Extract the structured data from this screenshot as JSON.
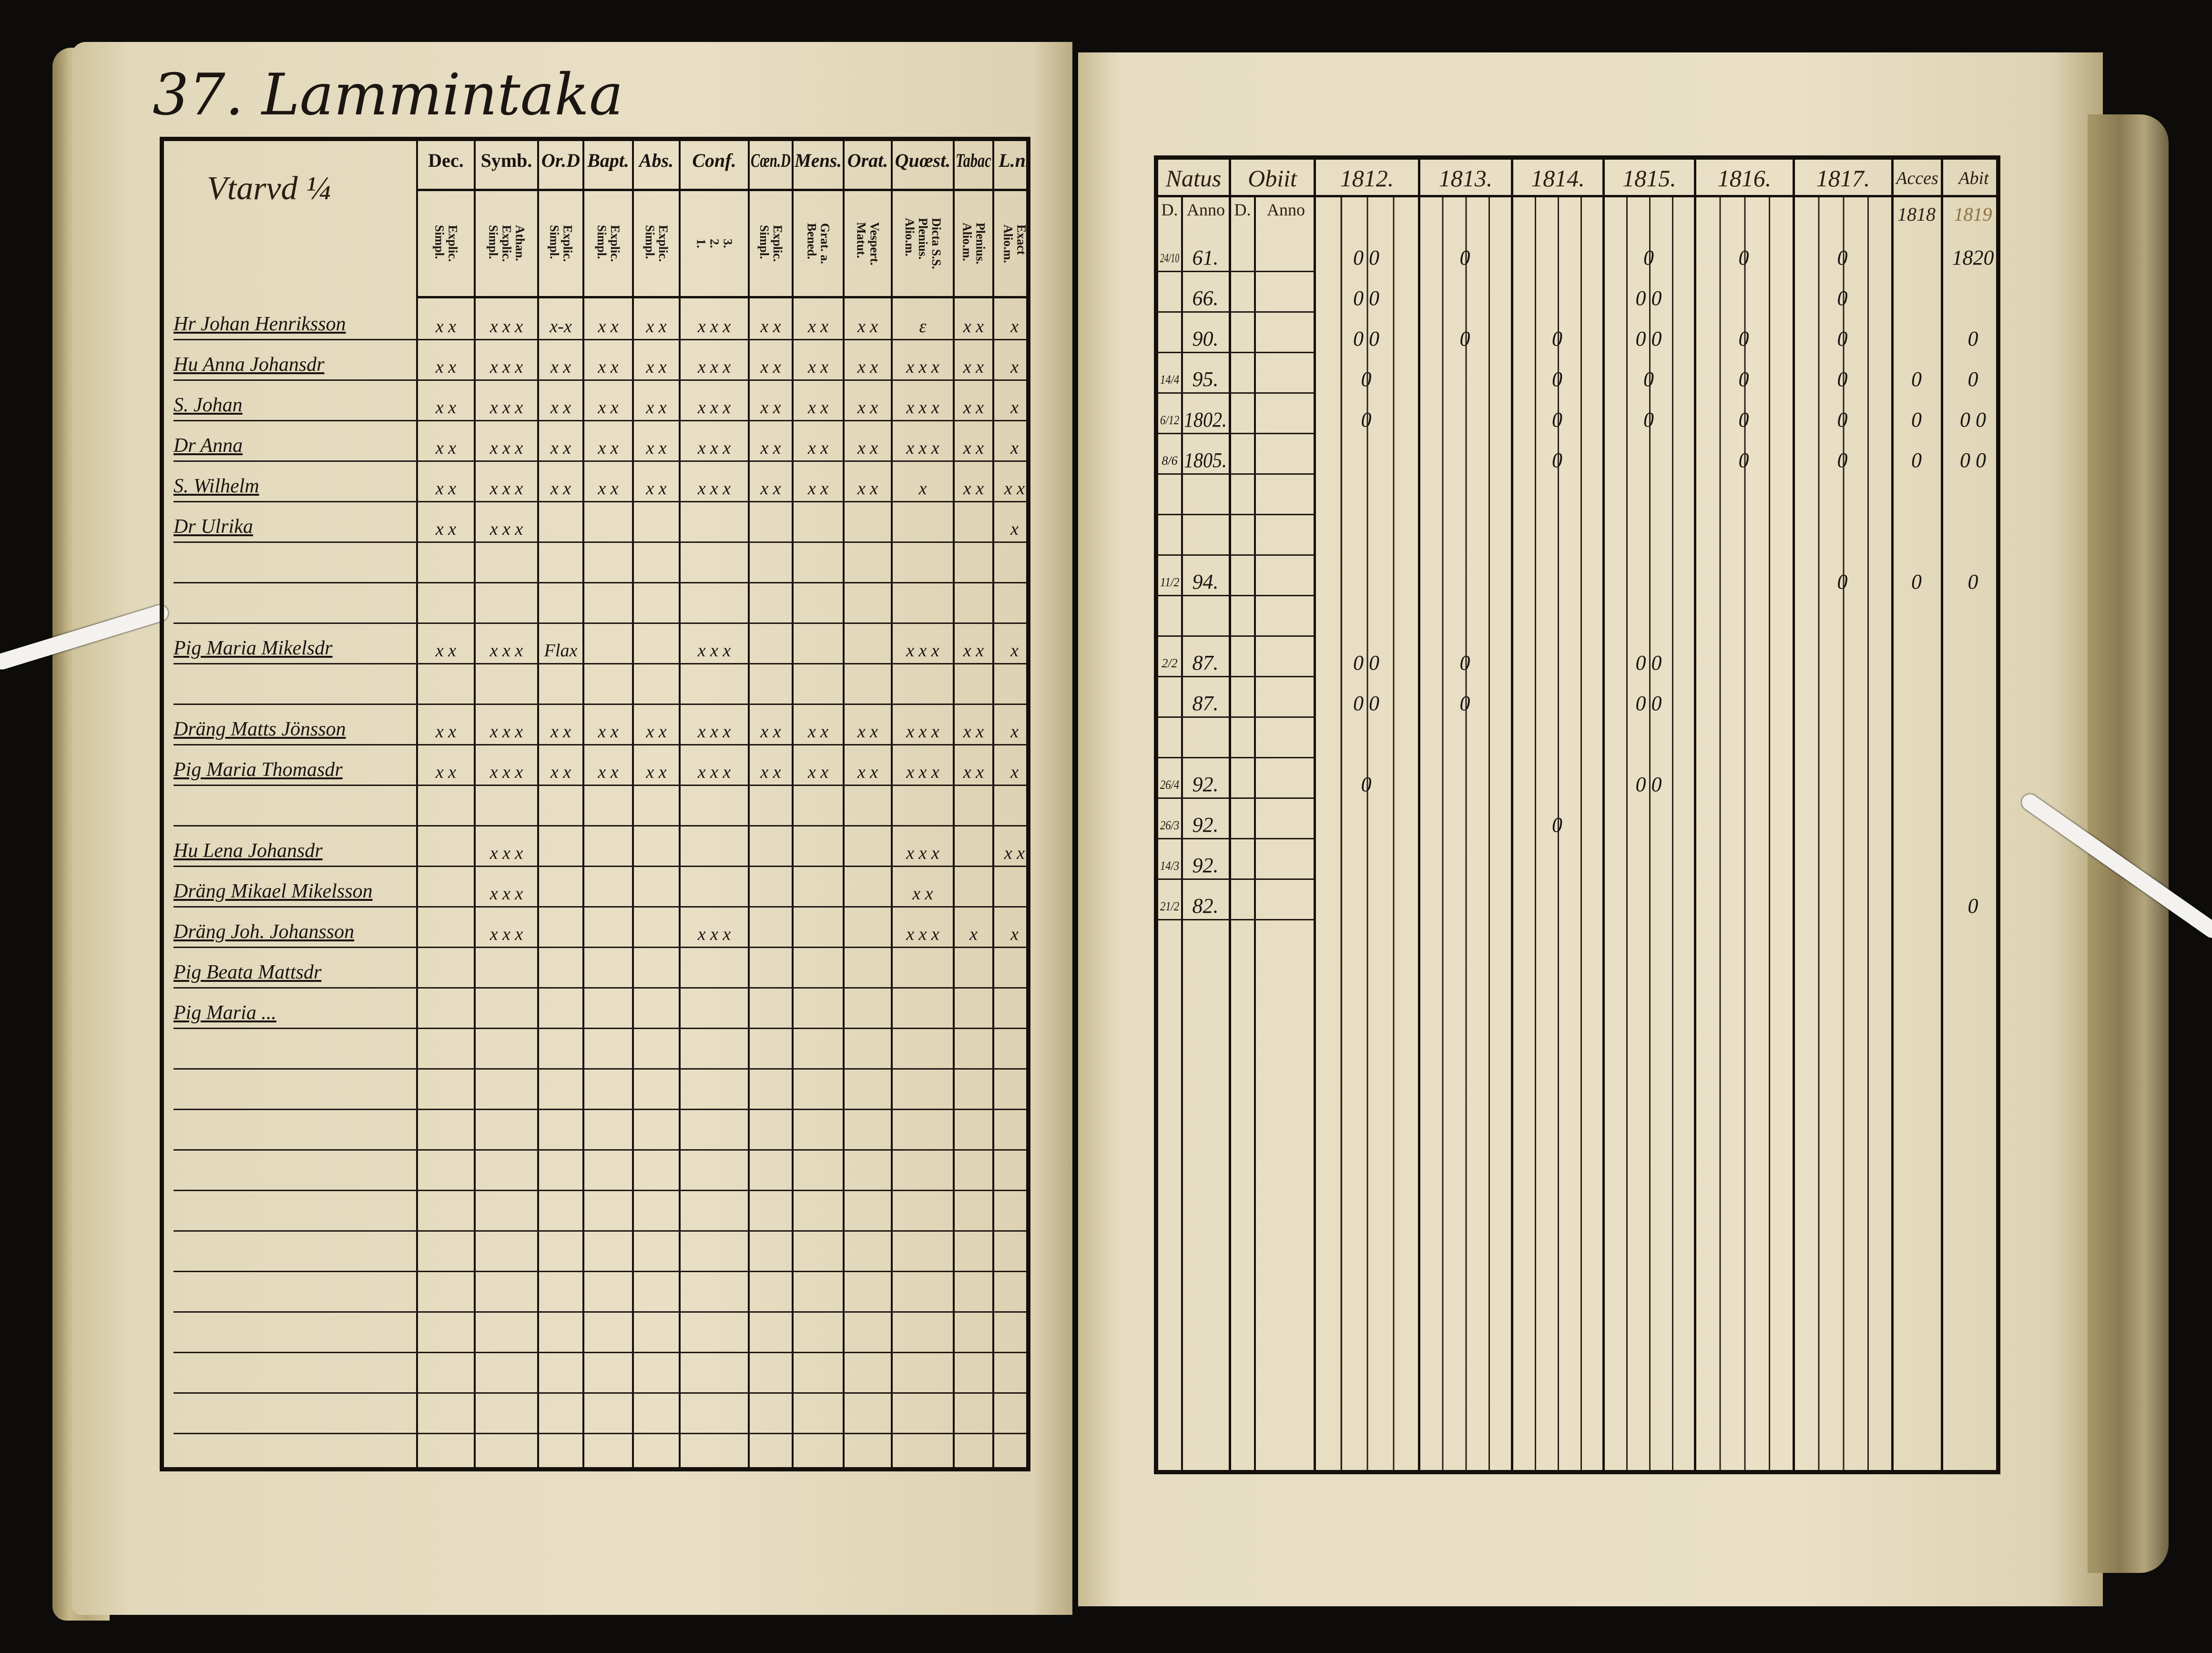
{
  "left_page": {
    "title": "37. Lammintaka",
    "village_note": "Vtarvd ¼",
    "columns": [
      {
        "head": "Dec.",
        "sub": "Explic.\nSimpl."
      },
      {
        "head": "Symb.",
        "sub": "Athan.\nExplic.\nSimpl."
      },
      {
        "head": "Or.D",
        "sub": "Explic.\nSimpl."
      },
      {
        "head": "Bapt.",
        "sub": "Explic.\nSimpl."
      },
      {
        "head": "Abs.",
        "sub": "Explic.\nSimpl."
      },
      {
        "head": "Conf.",
        "sub": "3.\n2.\n1."
      },
      {
        "head": "Cœn.D",
        "sub": "Explic.\nSimpl."
      },
      {
        "head": "Mens.",
        "sub": "Grat. a.\nBened."
      },
      {
        "head": "Orat.",
        "sub": "Vespert.\nMatut."
      },
      {
        "head": "Quœst.",
        "sub": "Dicta S.S.\nPlenius.\nAlio.m."
      },
      {
        "head": "Tabac",
        "sub": "Plenius.\nAlio.m."
      },
      {
        "head": "L.n.",
        "sub": "Exact\nAlio.m."
      }
    ],
    "rows": [
      {
        "name": "Hr Johan Henriksson",
        "marks": [
          "x x",
          "x x x",
          "x-x",
          "x x",
          "x x",
          "x x x",
          "x x",
          "x x",
          "x x",
          "ε",
          "x x",
          "x"
        ]
      },
      {
        "name": "Hu Anna Johansdr",
        "marks": [
          "x x",
          "x x x",
          "x x",
          "x x",
          "x x",
          "x x x",
          "x x",
          "x x",
          "x x",
          "x x x",
          "x x",
          "x"
        ]
      },
      {
        "name": "S. Johan",
        "marks": [
          "x x",
          "x x x",
          "x x",
          "x x",
          "x x",
          "x x x",
          "x x",
          "x x",
          "x x",
          "x x x",
          "x x",
          "x"
        ]
      },
      {
        "name": "Dr Anna",
        "marks": [
          "x x",
          "x x x",
          "x x",
          "x x",
          "x x",
          "x x x",
          "x x",
          "x x",
          "x x",
          "x x x",
          "x x",
          "x"
        ]
      },
      {
        "name": "S. Wilhelm",
        "marks": [
          "x x",
          "x x x",
          "x x",
          "x x",
          "x x",
          "x x x",
          "x x",
          "x x",
          "x x",
          "x",
          "x x",
          "x x"
        ]
      },
      {
        "name": "Dr Ulrika",
        "marks": [
          "x x",
          "x x x",
          "",
          "",
          "",
          "",
          "",
          "",
          "",
          "",
          "",
          "x"
        ]
      },
      {
        "name": "",
        "marks": []
      },
      {
        "name": "",
        "marks": []
      },
      {
        "name": "Pig Maria Mikelsdr",
        "marks": [
          "x x",
          "x x x",
          "Flax",
          "",
          "",
          "x x x",
          "",
          "",
          "",
          "x x x",
          "x x",
          "x"
        ]
      },
      {
        "name": "",
        "marks": []
      },
      {
        "name": "Dräng Matts Jönsson",
        "marks": [
          "x x",
          "x x x",
          "x x",
          "x x",
          "x x",
          "x x x",
          "x x",
          "x x",
          "x x",
          "x x x",
          "x x",
          "x"
        ]
      },
      {
        "name": "Pig Maria Thomasdr",
        "marks": [
          "x x",
          "x x x",
          "x x",
          "x x",
          "x x",
          "x x x",
          "x x",
          "x x",
          "x x",
          "x x x",
          "x x",
          "x"
        ]
      },
      {
        "name": "",
        "marks": []
      },
      {
        "name": "Hu Lena Johansdr",
        "marks": [
          "",
          "x x x",
          "",
          "",
          "",
          "",
          "",
          "",
          "",
          "x x x",
          "",
          "x x"
        ]
      },
      {
        "name": "Dräng Mikael Mikelsson",
        "marks": [
          "",
          "x x x",
          "",
          "",
          "",
          "",
          "",
          "",
          "",
          "x x",
          "",
          ""
        ]
      },
      {
        "name": "Dräng Joh. Johansson",
        "marks": [
          "",
          "x x x",
          "",
          "",
          "",
          "x x x",
          "",
          "",
          "",
          "x x x",
          "x",
          "x"
        ]
      },
      {
        "name": "Pig Beata Mattsdr",
        "marks": []
      },
      {
        "name": "Pig Maria ...",
        "marks": []
      }
    ]
  },
  "right_page": {
    "headers": {
      "natus": "Natus",
      "obiit": "Obiit",
      "natus_d": "D.",
      "natus_anno": "Anno",
      "obiit_d": "D.",
      "obiit_anno": "Anno",
      "years": [
        "1812.",
        "1813.",
        "1814.",
        "1815.",
        "1816.",
        "1817."
      ],
      "acces": "Acces",
      "abit": "Abit"
    },
    "acces_top": "1818",
    "abit_top": "1819",
    "rows": [
      {
        "d": "24/10",
        "anno": "61.",
        "years": [
          "0 0",
          "0",
          "",
          "0",
          "0",
          "0"
        ],
        "acces": "",
        "abit": "1820"
      },
      {
        "d": "",
        "anno": "66.",
        "years": [
          "0 0",
          "",
          "",
          "0 0",
          "",
          "0"
        ],
        "acces": "",
        "abit": ""
      },
      {
        "d": "",
        "anno": "90.",
        "years": [
          "0 0",
          "0",
          "0",
          "0 0",
          "0",
          "0"
        ],
        "acces": "",
        "abit": "0"
      },
      {
        "d": "14/4",
        "anno": "95.",
        "years": [
          "0",
          "",
          "0",
          "0",
          "0",
          "0"
        ],
        "acces": "0",
        "abit": "0"
      },
      {
        "d": "6/12",
        "anno": "1802.",
        "years": [
          "0",
          "",
          "0",
          "0",
          "0",
          "0"
        ],
        "acces": "0",
        "abit": "0 0"
      },
      {
        "d": "8/6",
        "anno": "1805.",
        "years": [
          "",
          "",
          "0",
          "",
          "0",
          "0"
        ],
        "acces": "0",
        "abit": "0 0"
      },
      {
        "d": "",
        "anno": "",
        "years": [],
        "acces": "",
        "abit": ""
      },
      {
        "d": "",
        "anno": "",
        "years": [],
        "acces": "",
        "abit": ""
      },
      {
        "d": "11/2",
        "anno": "94.",
        "years": [
          "",
          "",
          "",
          "",
          "",
          "0"
        ],
        "acces": "0",
        "abit": "0"
      },
      {
        "d": "",
        "anno": "",
        "years": [],
        "acces": "",
        "abit": ""
      },
      {
        "d": "2/2",
        "anno": "87.",
        "years": [
          "0 0",
          "0",
          "",
          "0 0",
          "",
          ""
        ],
        "acces": "",
        "abit": ""
      },
      {
        "d": "",
        "anno": "87.",
        "years": [
          "0 0",
          "0",
          "",
          "0 0",
          "",
          ""
        ],
        "acces": "",
        "abit": ""
      },
      {
        "d": "",
        "anno": "",
        "years": [],
        "acces": "",
        "abit": ""
      },
      {
        "d": "26/4",
        "anno": "92.",
        "years": [
          "0",
          "",
          "",
          "0 0",
          "",
          ""
        ],
        "acces": "",
        "abit": ""
      },
      {
        "d": "26/3",
        "anno": "92.",
        "years": [
          "",
          "",
          "0",
          "",
          "",
          ""
        ],
        "acces": "",
        "abit": ""
      },
      {
        "d": "14/3",
        "anno": "92.",
        "years": [],
        "acces": "",
        "abit": ""
      },
      {
        "d": "21/2",
        "anno": "82.",
        "years": [],
        "acces": "",
        "abit": "0"
      }
    ]
  }
}
